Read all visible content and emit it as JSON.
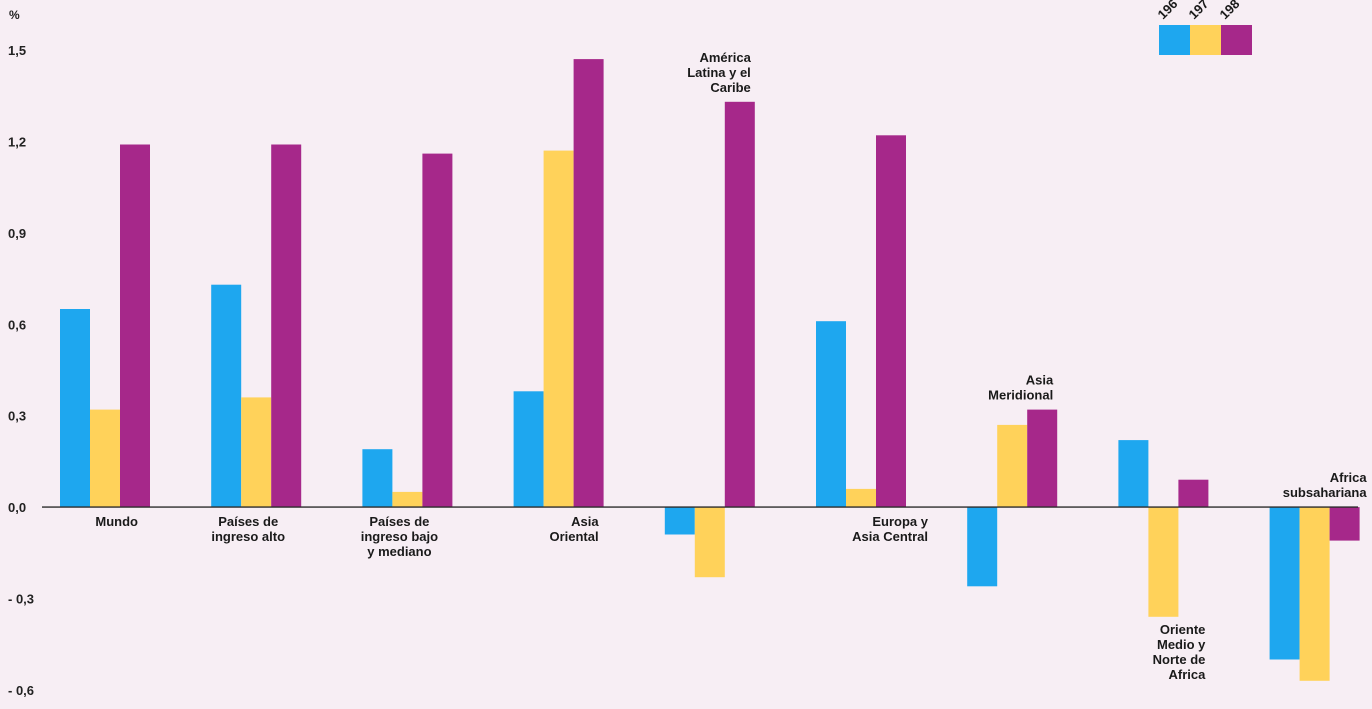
{
  "chart_data": {
    "type": "bar",
    "unit_label": "%",
    "ylim": [
      -0.6,
      1.5
    ],
    "y_ticks": [
      1.5,
      1.2,
      0.9,
      0.6,
      0.3,
      0.0,
      -0.3,
      -0.6
    ],
    "y_tick_labels": [
      "1,5",
      "1,2",
      "0,9",
      "0,6",
      "0,3",
      "0,0",
      "- 0,3",
      "- 0,6"
    ],
    "grid": false,
    "legend_position": "top-right",
    "categories": [
      [
        "Mundo"
      ],
      [
        "Países de",
        "ingreso alto"
      ],
      [
        "Países de",
        "ingreso bajo",
        "y mediano"
      ],
      [
        "Asia",
        "Oriental"
      ],
      [
        "América",
        "Latina y el",
        "Caribe"
      ],
      [
        "Europa y",
        "Asia Central"
      ],
      [
        "Asia",
        "Meridional"
      ],
      [
        "Oriente",
        "Medio y",
        "Norte de",
        "Africa"
      ],
      [
        "Africa",
        "subsahariana"
      ]
    ],
    "series": [
      {
        "name": "196",
        "color": "#1ea7ef",
        "values": [
          0.65,
          0.73,
          0.19,
          0.38,
          -0.09,
          0.61,
          -0.26,
          0.22,
          -0.5
        ]
      },
      {
        "name": "197",
        "color": "#ffd25a",
        "values": [
          0.32,
          0.36,
          0.05,
          1.17,
          -0.23,
          0.06,
          0.27,
          -0.36,
          -0.57
        ]
      },
      {
        "name": "198",
        "color": "#a6288a",
        "values": [
          1.19,
          1.19,
          1.16,
          1.47,
          1.33,
          1.22,
          0.32,
          0.09,
          -0.11
        ]
      }
    ]
  }
}
